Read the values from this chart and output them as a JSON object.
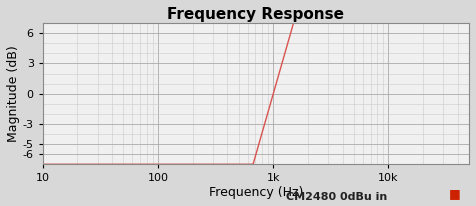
{
  "title": "Frequency Response",
  "xlabel": "Frequency (Hz)",
  "ylabel": "Magnitude (dB)",
  "xlim": [
    10,
    50000
  ],
  "ylim": [
    -7,
    7
  ],
  "line_color": "#d9534f",
  "legend_text": "CM2480 0dBu in",
  "legend_color": "#cc2200",
  "plot_bg_color": "#f0f0f0",
  "fig_bg_color": "#d8d8d8",
  "grid_major_color": "#aaaaaa",
  "grid_minor_color": "#cccccc",
  "title_fontsize": 11,
  "axis_label_fontsize": 9,
  "tick_fontsize": 8,
  "legend_fontsize": 8
}
